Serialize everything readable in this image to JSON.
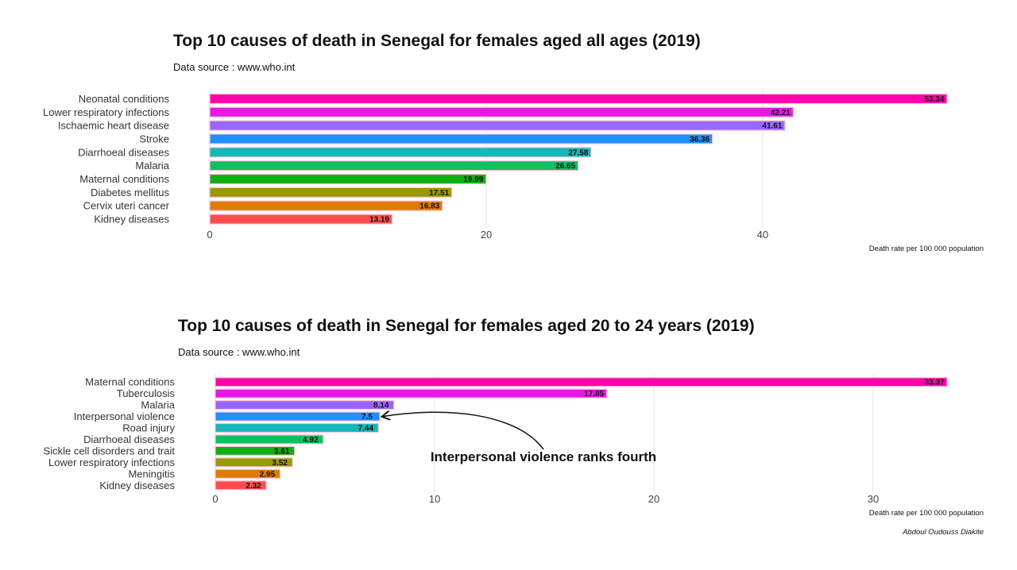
{
  "chart_data": [
    {
      "type": "bar",
      "title": "Top 10 causes of death in Senegal for females aged all ages (2019)",
      "subtitle": "Data source : www.who.int",
      "xlabel": "Death rate per 100 000 population",
      "xlim": [
        0,
        53.34
      ],
      "ticks": [
        0,
        20,
        40
      ],
      "grid": true,
      "orientation": "horizontal",
      "categories": [
        "Neonatal conditions",
        "Lower respiratory infections",
        "Ischaemic heart disease",
        "Stroke",
        "Diarrhoeal diseases",
        "Malaria",
        "Maternal conditions",
        "Diabetes mellitus",
        "Cervix uteri cancer",
        "Kidney diseases"
      ],
      "values": [
        53.34,
        42.21,
        41.61,
        36.36,
        27.58,
        26.65,
        19.99,
        17.51,
        16.83,
        13.19
      ],
      "value_labels": [
        "53.34",
        "42.21",
        "41.61",
        "36.36",
        "27.58",
        "26.65",
        "19.99",
        "17.51",
        "16.83",
        "13.19"
      ],
      "colors": [
        "#FF00AA",
        "#E41AE4",
        "#9966FF",
        "#1E90FF",
        "#14B8B8",
        "#10C060",
        "#10B010",
        "#999900",
        "#E07B00",
        "#FF4D4D"
      ]
    },
    {
      "type": "bar",
      "title": "Top 10 causes of death in Senegal for females aged 20 to 24 years (2019)",
      "subtitle": "Data source : www.who.int",
      "xlabel": "Death rate per 100 000 population",
      "xlim": [
        0,
        33.37
      ],
      "ticks": [
        0,
        10,
        20,
        30
      ],
      "grid": true,
      "orientation": "horizontal",
      "categories": [
        "Maternal conditions",
        "Tuberculosis",
        "Malaria",
        "Interpersonal violence",
        "Road injury",
        "Diarrhoeal diseases",
        "Sickle cell disorders and trait",
        "Lower respiratory infections",
        "Meningitis",
        "Kidney diseases"
      ],
      "values": [
        33.37,
        17.85,
        8.14,
        7.5,
        7.44,
        4.92,
        3.61,
        3.52,
        2.95,
        2.32
      ],
      "value_labels": [
        "33.37",
        "17.85",
        "8.14",
        "7.5",
        "7.44",
        "4.92",
        "3.61",
        "3.52",
        "2.95",
        "2.32"
      ],
      "colors": [
        "#FF00AA",
        "#E41AE4",
        "#9966FF",
        "#1E90FF",
        "#14B8B8",
        "#10C060",
        "#10B010",
        "#999900",
        "#E07B00",
        "#FF4D4D"
      ],
      "annotation": {
        "text": "Interpersonal violence ranks fourth",
        "target_category": "Interpersonal violence"
      }
    }
  ],
  "caption": "Abdoul Oudouss Diakite"
}
